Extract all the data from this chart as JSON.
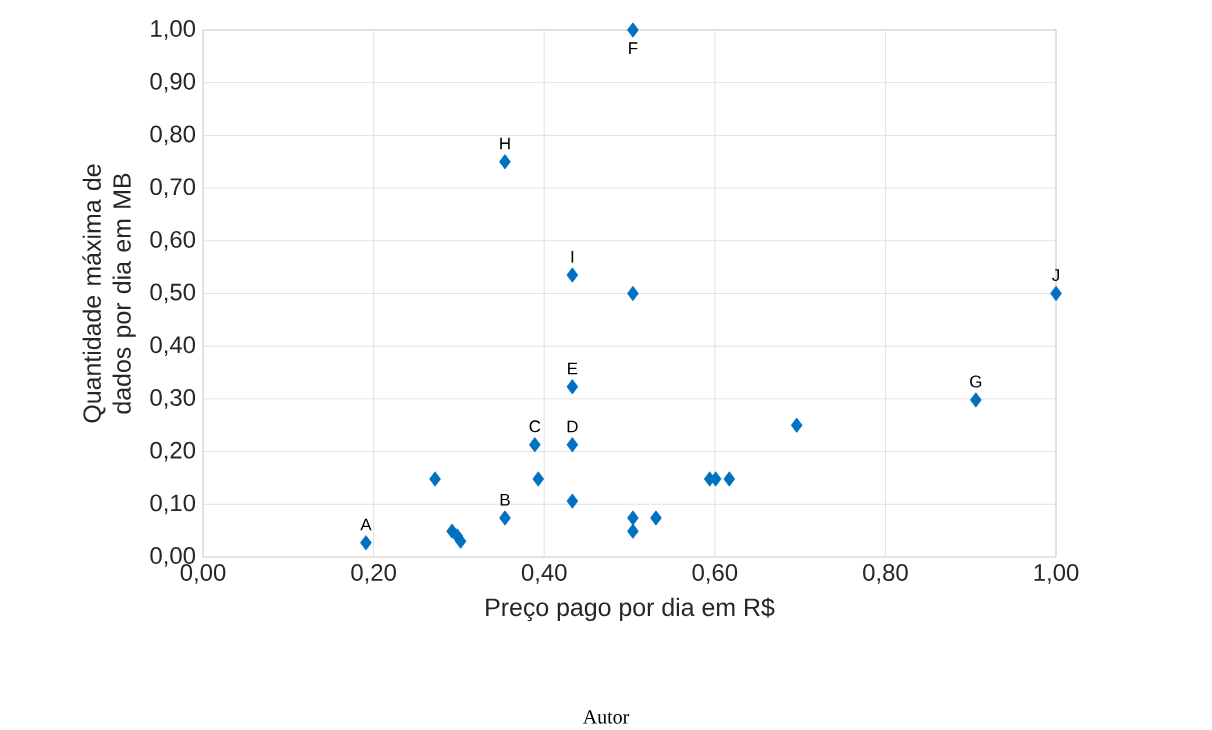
{
  "chart_data": {
    "type": "scatter",
    "xlabel": "Preço pago por dia em R$",
    "ylabel": "Quantidade máxima de dados por dia em MB",
    "x": [
      0.191,
      0.272,
      0.292,
      0.298,
      0.302,
      0.354,
      0.354,
      0.389,
      0.393,
      0.433,
      0.433,
      0.433,
      0.433,
      0.504,
      0.504,
      0.504,
      0.504,
      0.531,
      0.594,
      0.601,
      0.617,
      0.696,
      0.906,
      1.0
    ],
    "values": [
      0.027,
      0.148,
      0.049,
      0.04,
      0.03,
      0.074,
      0.75,
      0.213,
      0.148,
      0.213,
      0.323,
      0.535,
      0.106,
      1.0,
      0.5,
      0.074,
      0.049,
      0.074,
      0.148,
      0.148,
      0.148,
      0.25,
      0.298,
      0.5
    ],
    "color": "#0070c0",
    "marker": "diamond",
    "grid": true,
    "xlim": [
      0,
      1
    ],
    "ylim": [
      0,
      1
    ],
    "xticks": [
      {
        "value": 0,
        "label": "0,00"
      },
      {
        "value": 0.2,
        "label": "0,20"
      },
      {
        "value": 0.4,
        "label": "0,40"
      },
      {
        "value": 0.6,
        "label": "0,60"
      },
      {
        "value": 0.8,
        "label": "0,80"
      },
      {
        "value": 1,
        "label": "1,00"
      }
    ],
    "yticks": [
      {
        "value": 0,
        "label": "0,00"
      },
      {
        "value": 0.1,
        "label": "0,10"
      },
      {
        "value": 0.2,
        "label": "0,20"
      },
      {
        "value": 0.3,
        "label": "0,30"
      },
      {
        "value": 0.4,
        "label": "0,40"
      },
      {
        "value": 0.5,
        "label": "0,50"
      },
      {
        "value": 0.6,
        "label": "0,60"
      },
      {
        "value": 0.7,
        "label": "0,70"
      },
      {
        "value": 0.8,
        "label": "0,80"
      },
      {
        "value": 0.9,
        "label": "0,90"
      },
      {
        "value": 1,
        "label": "1,00"
      }
    ],
    "annotations": [
      {
        "text": "A",
        "x": 0.191,
        "y": 0.027
      },
      {
        "text": "B",
        "x": 0.354,
        "y": 0.074
      },
      {
        "text": "C",
        "x": 0.389,
        "y": 0.213
      },
      {
        "text": "D",
        "x": 0.433,
        "y": 0.213
      },
      {
        "text": "E",
        "x": 0.433,
        "y": 0.323
      },
      {
        "text": "F",
        "x": 0.504,
        "y": 1.0
      },
      {
        "text": "G",
        "x": 0.906,
        "y": 0.298
      },
      {
        "text": "H",
        "x": 0.354,
        "y": 0.75
      },
      {
        "text": "I",
        "x": 0.433,
        "y": 0.535
      },
      {
        "text": "J",
        "x": 1.0,
        "y": 0.5
      },
      "Autor"
    ]
  }
}
